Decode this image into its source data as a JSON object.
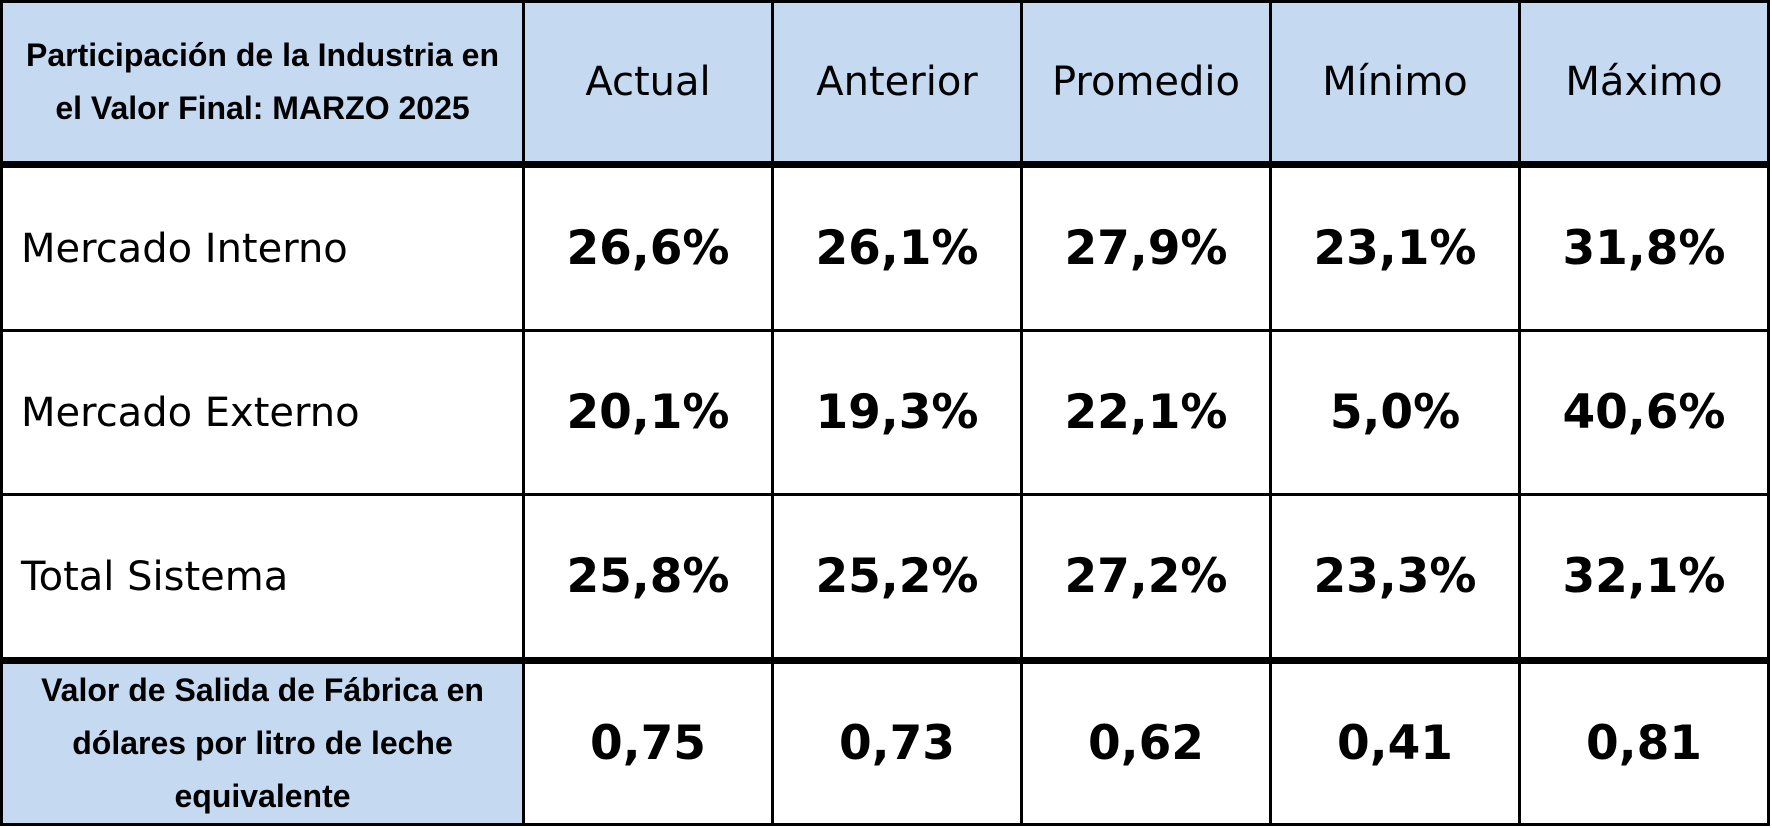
{
  "table": {
    "header": {
      "title": "Participación de la Industria en el Valor Final: MARZO 2025",
      "columns": [
        "Actual",
        "Anterior",
        "Promedio",
        "Mínimo",
        "Máximo"
      ]
    },
    "rows": [
      {
        "label": "Mercado Interno",
        "values": [
          "26,6%",
          "26,1%",
          "27,9%",
          "23,1%",
          "31,8%"
        ]
      },
      {
        "label": "Mercado Externo",
        "values": [
          "20,1%",
          "19,3%",
          "22,1%",
          "5,0%",
          "40,6%"
        ]
      },
      {
        "label": "Total Sistema",
        "values": [
          "25,8%",
          "25,2%",
          "27,2%",
          "23,3%",
          "32,1%"
        ]
      }
    ],
    "footer": {
      "label": "Valor de Salida de Fábrica en dólares por litro de leche equivalente",
      "values": [
        "0,75",
        "0,73",
        "0,62",
        "0,41",
        "0,81"
      ]
    }
  },
  "colors": {
    "header_fill": "#c5d9f1",
    "border": "#000000"
  }
}
